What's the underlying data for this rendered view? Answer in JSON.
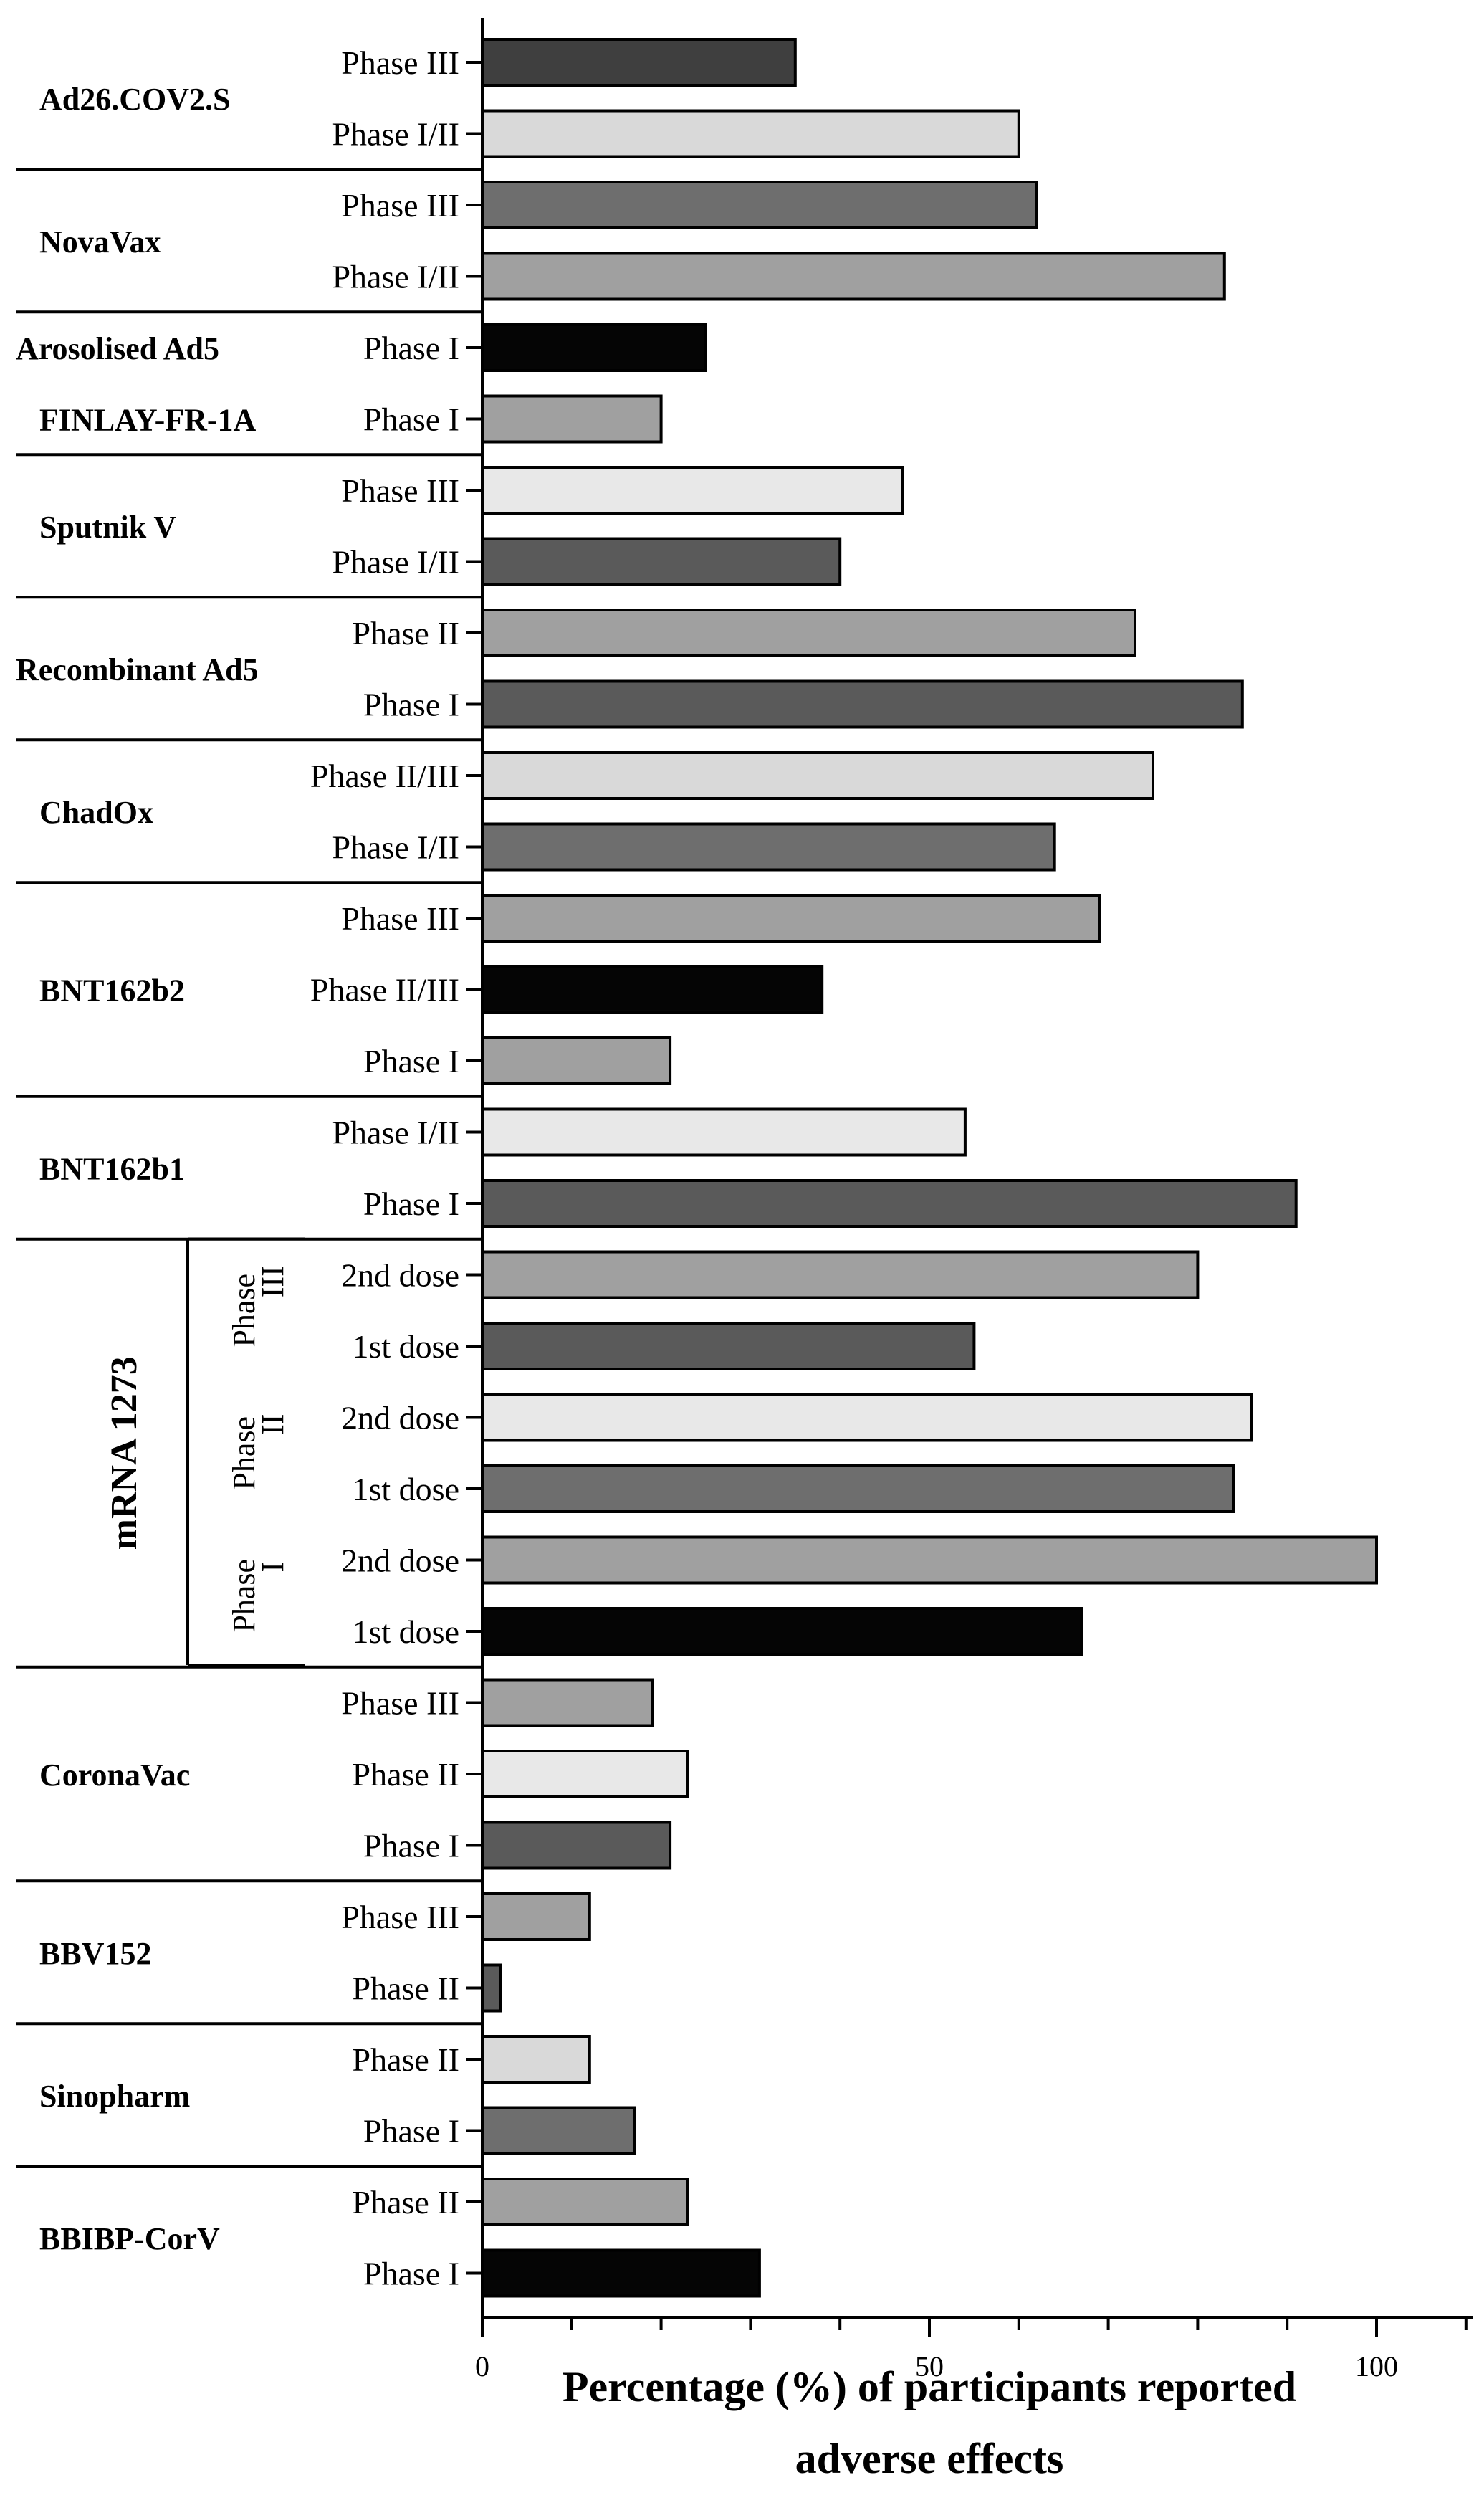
{
  "chart_data": {
    "type": "bar",
    "orientation": "horizontal",
    "xlabel": [
      "Percentage (%) of participants reported",
      "adverse effects"
    ],
    "xlim": [
      0,
      110
    ],
    "xticks": [
      0,
      50,
      100
    ],
    "groups": [
      {
        "name": "Ad26.COV2.S",
        "bars": [
          {
            "label": "Phase III",
            "value": 35,
            "color": "#3f3f3f"
          },
          {
            "label": "Phase I/II",
            "value": 60,
            "color": "#d9d9d9"
          }
        ]
      },
      {
        "name": "NovaVax",
        "bars": [
          {
            "label": "Phase III",
            "value": 62,
            "color": "#6e6e6e"
          },
          {
            "label": "Phase I/II",
            "value": 83,
            "color": "#a0a0a0"
          }
        ]
      },
      {
        "name": "Arosolised Ad5",
        "bars": [
          {
            "label": "Phase I",
            "value": 25,
            "color": "#050505"
          }
        ]
      },
      {
        "name": "FINLAY-FR-1A",
        "bars": [
          {
            "label": "Phase I",
            "value": 20,
            "color": "#a0a0a0"
          }
        ]
      },
      {
        "name": "Sputnik V",
        "bars": [
          {
            "label": "Phase III",
            "value": 47,
            "color": "#e8e8e8"
          },
          {
            "label": "Phase I/II",
            "value": 40,
            "color": "#5a5a5a"
          }
        ]
      },
      {
        "name": "Recombinant Ad5",
        "bars": [
          {
            "label": "Phase II",
            "value": 73,
            "color": "#a0a0a0"
          },
          {
            "label": "Phase I",
            "value": 85,
            "color": "#5a5a5a"
          }
        ]
      },
      {
        "name": "ChadOx",
        "bars": [
          {
            "label": "Phase II/III",
            "value": 75,
            "color": "#d9d9d9"
          },
          {
            "label": "Phase I/II",
            "value": 64,
            "color": "#6e6e6e"
          }
        ]
      },
      {
        "name": "BNT162b2",
        "bars": [
          {
            "label": "Phase III",
            "value": 69,
            "color": "#a0a0a0"
          },
          {
            "label": "Phase II/III",
            "value": 38,
            "color": "#050505"
          },
          {
            "label": "Phase I",
            "value": 21,
            "color": "#a0a0a0"
          }
        ]
      },
      {
        "name": "BNT162b1",
        "bars": [
          {
            "label": "Phase I/II",
            "value": 54,
            "color": "#e8e8e8"
          },
          {
            "label": "Phase I",
            "value": 91,
            "color": "#5a5a5a"
          }
        ]
      },
      {
        "name": "mRNA 1273",
        "subgroups": [
          {
            "name": "Phase III",
            "bars": [
              {
                "label": "2nd dose",
                "value": 80,
                "color": "#a0a0a0"
              },
              {
                "label": "1st dose",
                "value": 55,
                "color": "#5a5a5a"
              }
            ]
          },
          {
            "name": "Phase II",
            "bars": [
              {
                "label": "2nd dose",
                "value": 86,
                "color": "#e8e8e8"
              },
              {
                "label": "1st dose",
                "value": 84,
                "color": "#6e6e6e"
              }
            ]
          },
          {
            "name": "Phase I",
            "bars": [
              {
                "label": "2nd dose",
                "value": 100,
                "color": "#a0a0a0"
              },
              {
                "label": "1st dose",
                "value": 67,
                "color": "#050505"
              }
            ]
          }
        ]
      },
      {
        "name": "CoronaVac",
        "bars": [
          {
            "label": "Phase III",
            "value": 19,
            "color": "#a0a0a0"
          },
          {
            "label": "Phase II",
            "value": 23,
            "color": "#e8e8e8"
          },
          {
            "label": "Phase I",
            "value": 21,
            "color": "#5a5a5a"
          }
        ]
      },
      {
        "name": "BBV152",
        "bars": [
          {
            "label": "Phase III",
            "value": 12,
            "color": "#a0a0a0"
          },
          {
            "label": "Phase II",
            "value": 2,
            "color": "#5a5a5a"
          }
        ]
      },
      {
        "name": "Sinopharm",
        "bars": [
          {
            "label": "Phase II",
            "value": 12,
            "color": "#d9d9d9"
          },
          {
            "label": "Phase I",
            "value": 17,
            "color": "#6e6e6e"
          }
        ]
      },
      {
        "name": "BBIBP-CorV",
        "bars": [
          {
            "label": "Phase II",
            "value": 23,
            "color": "#a0a0a0"
          },
          {
            "label": "Phase I",
            "value": 31,
            "color": "#050505"
          }
        ]
      }
    ]
  }
}
